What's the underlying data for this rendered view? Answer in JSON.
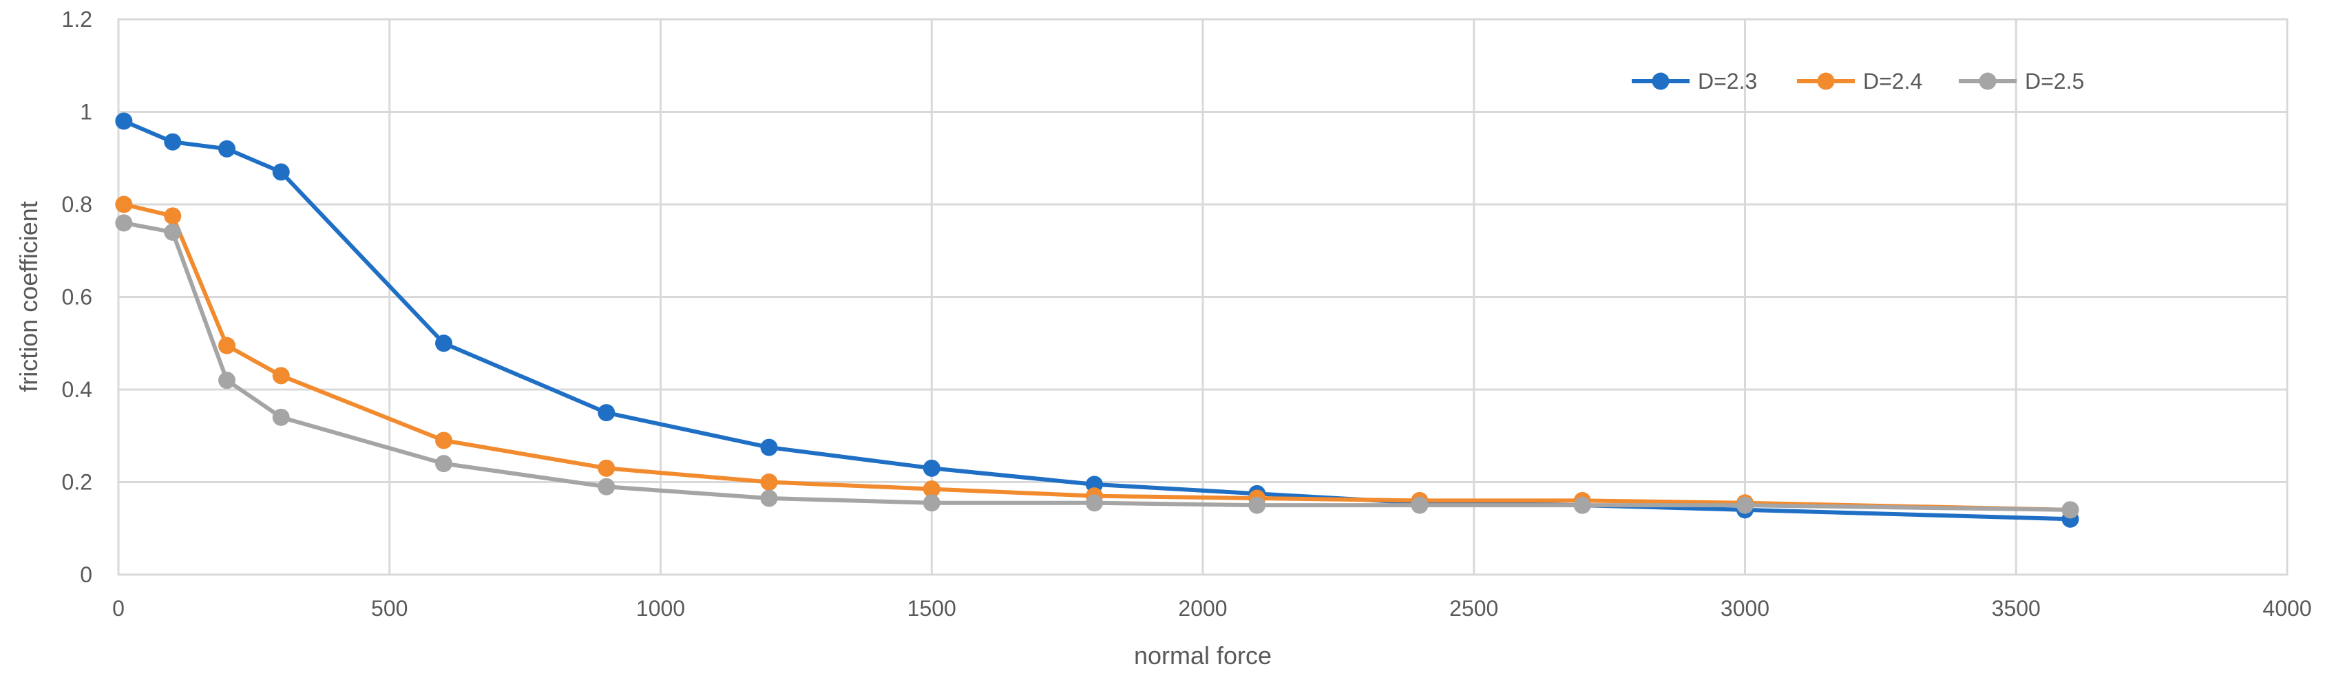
{
  "chart_data": {
    "type": "line",
    "title": "",
    "xlabel": "normal force",
    "ylabel": "friction coefficient",
    "xlim": [
      0,
      4000
    ],
    "ylim": [
      0,
      1.2
    ],
    "x_ticks": [
      "0",
      "500",
      "1000",
      "1500",
      "2000",
      "2500",
      "3000",
      "3500",
      "4000"
    ],
    "y_ticks": [
      "0",
      "0.2",
      "0.4",
      "0.6",
      "0.8",
      "1",
      "1.2"
    ],
    "grid": true,
    "legend_position": "top-right",
    "x": [
      10,
      100,
      200,
      300,
      600,
      900,
      1200,
      1500,
      1800,
      2100,
      2400,
      2700,
      3000,
      3600
    ],
    "series": [
      {
        "name": "D=2.3",
        "color": "#1f6fc5",
        "values": [
          0.98,
          0.935,
          0.92,
          0.87,
          0.5,
          0.35,
          0.275,
          0.23,
          0.195,
          0.175,
          0.155,
          0.15,
          0.14,
          0.12
        ]
      },
      {
        "name": "D=2.4",
        "color": "#f28a2e",
        "values": [
          0.8,
          0.775,
          0.495,
          0.43,
          0.29,
          0.23,
          0.2,
          0.185,
          0.17,
          0.165,
          0.16,
          0.16,
          0.155,
          0.14
        ]
      },
      {
        "name": "D=2.5",
        "color": "#a5a5a5",
        "values": [
          0.76,
          0.74,
          0.42,
          0.34,
          0.24,
          0.19,
          0.165,
          0.155,
          0.155,
          0.15,
          0.15,
          0.15,
          0.15,
          0.14
        ]
      }
    ]
  }
}
